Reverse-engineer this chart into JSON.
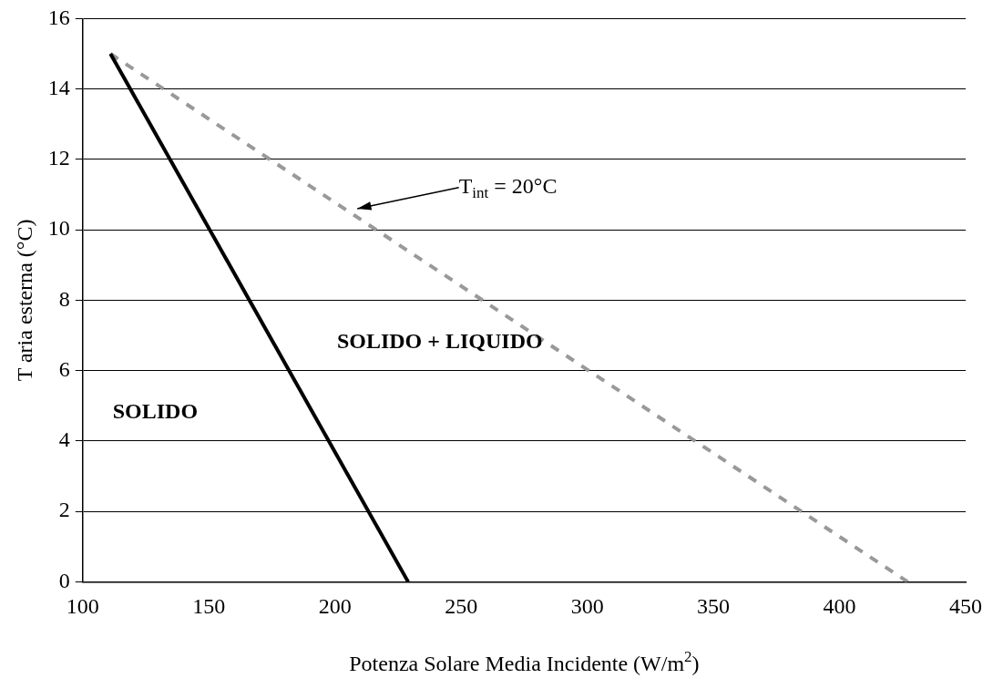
{
  "chart_data": {
    "type": "line",
    "xlabel": "Potenza Solare Media Incidente (W/m$^{2}$)",
    "ylabel": "T aria esterna (°C)",
    "xlim": [
      100,
      450
    ],
    "xticks": [
      100,
      150,
      200,
      250,
      300,
      350,
      400,
      450
    ],
    "ylim": [
      0,
      16
    ],
    "yticks": [
      0,
      2,
      4,
      6,
      8,
      10,
      12,
      14,
      16
    ],
    "grid": "y",
    "legend": false,
    "marker": "none",
    "series": [
      {
        "color": "#000000",
        "line_style": "solid",
        "x": [
          111,
          229
        ],
        "values": [
          15,
          0
        ]
      },
      {
        "color": "#999999",
        "line_style": "dashed",
        "x": [
          111,
          427
        ],
        "values": [
          15,
          0
        ]
      }
    ],
    "annotations": [
      "T$_{int}$ = 20°C",
      "SOLIDO + LIQUIDO",
      "SOLIDO"
    ]
  }
}
